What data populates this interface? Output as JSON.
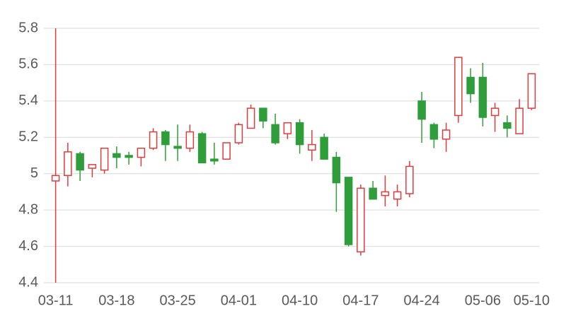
{
  "chart_data": {
    "type": "candlestick",
    "categories": [
      "03-11",
      null,
      null,
      null,
      null,
      "03-18",
      null,
      null,
      null,
      null,
      "03-25",
      null,
      null,
      null,
      null,
      "04-01",
      null,
      null,
      null,
      null,
      "04-10",
      null,
      null,
      null,
      null,
      "04-17",
      null,
      null,
      null,
      null,
      "04-24",
      null,
      null,
      null,
      null,
      "05-06",
      null,
      null,
      null,
      "05-10"
    ],
    "open": [
      4.96,
      4.99,
      5.11,
      5.03,
      5.02,
      5.11,
      5.1,
      5.09,
      5.14,
      5.23,
      5.15,
      5.14,
      5.22,
      5.08,
      5.08,
      5.17,
      5.25,
      5.36,
      5.27,
      5.22,
      5.28,
      5.13,
      5.2,
      5.09,
      4.98,
      4.57,
      4.92,
      4.88,
      4.86,
      4.89,
      5.4,
      5.27,
      5.19,
      5.32,
      5.53,
      5.53,
      5.32,
      5.28,
      5.22,
      5.36
    ],
    "high": [
      5.8,
      5.17,
      5.12,
      5.05,
      5.14,
      5.15,
      5.12,
      5.14,
      5.25,
      5.24,
      5.27,
      5.27,
      5.23,
      5.17,
      5.17,
      5.28,
      5.38,
      5.36,
      5.33,
      5.28,
      5.3,
      5.24,
      5.22,
      5.12,
      4.98,
      4.94,
      4.96,
      4.99,
      4.94,
      5.07,
      5.45,
      5.28,
      5.28,
      5.64,
      5.58,
      5.61,
      5.39,
      5.32,
      5.41,
      5.55
    ],
    "low": [
      4.4,
      4.93,
      4.96,
      4.98,
      5.0,
      5.03,
      5.05,
      5.04,
      5.13,
      5.07,
      5.07,
      5.12,
      5.06,
      5.05,
      5.08,
      5.16,
      5.25,
      5.25,
      5.16,
      5.19,
      5.11,
      5.07,
      5.08,
      4.79,
      4.6,
      4.55,
      4.86,
      4.82,
      4.82,
      4.87,
      5.17,
      5.14,
      5.12,
      5.28,
      5.39,
      5.26,
      5.23,
      5.2,
      5.22,
      5.35
    ],
    "close": [
      4.99,
      5.12,
      5.02,
      5.05,
      5.14,
      5.09,
      5.09,
      5.14,
      5.23,
      5.16,
      5.14,
      5.23,
      5.06,
      5.07,
      5.17,
      5.27,
      5.36,
      5.29,
      5.17,
      5.28,
      5.16,
      5.16,
      5.08,
      4.95,
      4.61,
      4.92,
      4.86,
      4.9,
      4.9,
      5.04,
      5.3,
      5.19,
      5.24,
      5.64,
      5.44,
      5.31,
      5.36,
      5.25,
      5.36,
      5.55
    ],
    "up_color": "#e03c3c",
    "down_color": "#2f9e3a",
    "ylim": [
      4.4,
      5.8
    ],
    "yticks": [
      4.4,
      4.6,
      4.8,
      5,
      5.2,
      5.4,
      5.6,
      5.8
    ],
    "grid": true
  }
}
